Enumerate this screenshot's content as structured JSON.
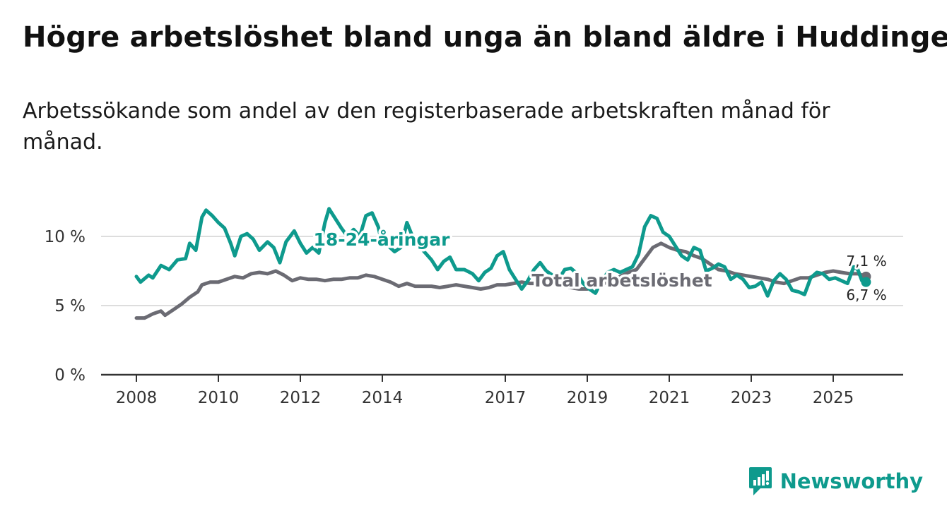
{
  "title": "Högre arbetslöshet bland unga än bland äldre i Huddinge",
  "subtitle": "Arbetssökande som andel av den registerbaserade arbetskraften månad för månad.",
  "brand": {
    "name": "Newsworthy",
    "color": "#0e9a8d"
  },
  "colors": {
    "youth": "#0e9a8d",
    "total": "#6b6b73",
    "axis": "#333333",
    "grid": "#dddddd"
  },
  "chart_data": {
    "type": "line",
    "title": "Högre arbetslöshet bland unga än bland äldre i Huddinge",
    "xlabel": "",
    "ylabel": "",
    "xlim": [
      2008,
      2025.85
    ],
    "ylim": [
      0,
      10
    ],
    "y_ticks": [
      {
        "value": 0,
        "label": "0 %"
      },
      {
        "value": 5,
        "label": "5 %"
      },
      {
        "value": 10,
        "label": "10 %"
      }
    ],
    "x_ticks": [
      {
        "value": 2008,
        "label": "2008"
      },
      {
        "value": 2010,
        "label": "2010"
      },
      {
        "value": 2012,
        "label": "2012"
      },
      {
        "value": 2014,
        "label": "2014"
      },
      {
        "value": 2017,
        "label": "2017"
      },
      {
        "value": 2019,
        "label": "2019"
      },
      {
        "value": 2021,
        "label": "2021"
      },
      {
        "value": 2023,
        "label": "2023"
      },
      {
        "value": 2025,
        "label": "2025"
      }
    ],
    "series": [
      {
        "name": "Total arbetslöshet",
        "label": "Total arbetslöshet",
        "color": "#6b6b73",
        "end_label": "7,1 %",
        "points": [
          [
            2008,
            4.1
          ],
          [
            2008.2,
            4.1
          ],
          [
            2008.4,
            4.4
          ],
          [
            2008.6,
            4.6
          ],
          [
            2008.7,
            4.3
          ],
          [
            2008.9,
            4.7
          ],
          [
            2009.1,
            5.1
          ],
          [
            2009.3,
            5.6
          ],
          [
            2009.5,
            6.0
          ],
          [
            2009.6,
            6.5
          ],
          [
            2009.8,
            6.7
          ],
          [
            2010.0,
            6.7
          ],
          [
            2010.2,
            6.9
          ],
          [
            2010.4,
            7.1
          ],
          [
            2010.6,
            7.0
          ],
          [
            2010.8,
            7.3
          ],
          [
            2011.0,
            7.4
          ],
          [
            2011.2,
            7.3
          ],
          [
            2011.4,
            7.5
          ],
          [
            2011.6,
            7.2
          ],
          [
            2011.8,
            6.8
          ],
          [
            2012.0,
            7.0
          ],
          [
            2012.2,
            6.9
          ],
          [
            2012.4,
            6.9
          ],
          [
            2012.6,
            6.8
          ],
          [
            2012.8,
            6.9
          ],
          [
            2013.0,
            6.9
          ],
          [
            2013.2,
            7.0
          ],
          [
            2013.4,
            7.0
          ],
          [
            2013.6,
            7.2
          ],
          [
            2013.8,
            7.1
          ],
          [
            2014.0,
            6.9
          ],
          [
            2014.2,
            6.7
          ],
          [
            2014.4,
            6.4
          ],
          [
            2014.6,
            6.6
          ],
          [
            2014.8,
            6.4
          ],
          [
            2015.0,
            6.4
          ],
          [
            2015.2,
            6.4
          ],
          [
            2015.4,
            6.3
          ],
          [
            2015.6,
            6.4
          ],
          [
            2015.8,
            6.5
          ],
          [
            2016.0,
            6.4
          ],
          [
            2016.2,
            6.3
          ],
          [
            2016.4,
            6.2
          ],
          [
            2016.6,
            6.3
          ],
          [
            2016.8,
            6.5
          ],
          [
            2017.0,
            6.5
          ],
          [
            2017.2,
            6.6
          ],
          [
            2017.4,
            6.7
          ],
          [
            2017.6,
            6.6
          ],
          [
            2017.8,
            6.6
          ],
          [
            2018.0,
            6.5
          ],
          [
            2018.2,
            6.5
          ],
          [
            2018.4,
            6.4
          ],
          [
            2018.6,
            6.3
          ],
          [
            2018.8,
            6.2
          ],
          [
            2019.0,
            6.2
          ],
          [
            2019.2,
            6.4
          ],
          [
            2019.4,
            6.6
          ],
          [
            2019.6,
            6.8
          ],
          [
            2019.8,
            7.1
          ],
          [
            2020.0,
            7.4
          ],
          [
            2020.2,
            7.6
          ],
          [
            2020.4,
            8.4
          ],
          [
            2020.6,
            9.2
          ],
          [
            2020.8,
            9.5
          ],
          [
            2021.0,
            9.2
          ],
          [
            2021.2,
            9.0
          ],
          [
            2021.4,
            8.9
          ],
          [
            2021.6,
            8.6
          ],
          [
            2021.8,
            8.4
          ],
          [
            2022.0,
            8.0
          ],
          [
            2022.2,
            7.6
          ],
          [
            2022.4,
            7.5
          ],
          [
            2022.6,
            7.3
          ],
          [
            2022.8,
            7.2
          ],
          [
            2023.0,
            7.1
          ],
          [
            2023.2,
            7.0
          ],
          [
            2023.4,
            6.9
          ],
          [
            2023.6,
            6.7
          ],
          [
            2023.8,
            6.6
          ],
          [
            2024.0,
            6.8
          ],
          [
            2024.2,
            7.0
          ],
          [
            2024.4,
            7.0
          ],
          [
            2024.6,
            7.2
          ],
          [
            2024.8,
            7.4
          ],
          [
            2025.0,
            7.5
          ],
          [
            2025.2,
            7.4
          ],
          [
            2025.4,
            7.3
          ],
          [
            2025.6,
            7.3
          ],
          [
            2025.8,
            7.1
          ]
        ]
      },
      {
        "name": "18-24-åringar",
        "label": "18-24-åringar",
        "color": "#0e9a8d",
        "end_label": "6,7 %",
        "points": [
          [
            2008,
            7.1
          ],
          [
            2008.1,
            6.7
          ],
          [
            2008.3,
            7.2
          ],
          [
            2008.4,
            7.0
          ],
          [
            2008.6,
            7.9
          ],
          [
            2008.8,
            7.6
          ],
          [
            2009.0,
            8.3
          ],
          [
            2009.2,
            8.4
          ],
          [
            2009.3,
            9.5
          ],
          [
            2009.45,
            9.0
          ],
          [
            2009.6,
            11.4
          ],
          [
            2009.7,
            11.9
          ],
          [
            2009.85,
            11.5
          ],
          [
            2010.0,
            11.0
          ],
          [
            2010.15,
            10.6
          ],
          [
            2010.3,
            9.5
          ],
          [
            2010.4,
            8.6
          ],
          [
            2010.55,
            10.0
          ],
          [
            2010.7,
            10.2
          ],
          [
            2010.85,
            9.8
          ],
          [
            2011.0,
            9.0
          ],
          [
            2011.2,
            9.6
          ],
          [
            2011.35,
            9.2
          ],
          [
            2011.5,
            8.1
          ],
          [
            2011.65,
            9.6
          ],
          [
            2011.85,
            10.4
          ],
          [
            2012.0,
            9.5
          ],
          [
            2012.15,
            8.8
          ],
          [
            2012.3,
            9.2
          ],
          [
            2012.45,
            8.8
          ],
          [
            2012.6,
            11.0
          ],
          [
            2012.7,
            12.0
          ],
          [
            2012.85,
            11.3
          ],
          [
            2013.0,
            10.6
          ],
          [
            2013.15,
            10.0
          ],
          [
            2013.3,
            10.5
          ],
          [
            2013.45,
            10.0
          ],
          [
            2013.6,
            11.5
          ],
          [
            2013.75,
            11.7
          ],
          [
            2013.9,
            10.7
          ],
          [
            2014.0,
            9.4
          ],
          [
            2014.15,
            9.3
          ],
          [
            2014.3,
            8.9
          ],
          [
            2014.45,
            9.2
          ],
          [
            2014.6,
            11.0
          ],
          [
            2014.75,
            9.9
          ],
          [
            2014.9,
            9.3
          ],
          [
            2015.05,
            8.8
          ],
          [
            2015.2,
            8.3
          ],
          [
            2015.35,
            7.6
          ],
          [
            2015.5,
            8.2
          ],
          [
            2015.65,
            8.5
          ],
          [
            2015.8,
            7.6
          ],
          [
            2016.0,
            7.6
          ],
          [
            2016.2,
            7.3
          ],
          [
            2016.35,
            6.8
          ],
          [
            2016.5,
            7.4
          ],
          [
            2016.65,
            7.7
          ],
          [
            2016.8,
            8.6
          ],
          [
            2016.95,
            8.9
          ],
          [
            2017.1,
            7.6
          ],
          [
            2017.25,
            6.9
          ],
          [
            2017.4,
            6.2
          ],
          [
            2017.55,
            6.8
          ],
          [
            2017.7,
            7.6
          ],
          [
            2017.85,
            8.1
          ],
          [
            2018.0,
            7.5
          ],
          [
            2018.15,
            7.2
          ],
          [
            2018.3,
            6.9
          ],
          [
            2018.45,
            7.6
          ],
          [
            2018.6,
            7.7
          ],
          [
            2018.75,
            7.3
          ],
          [
            2018.9,
            6.6
          ],
          [
            2019.05,
            6.2
          ],
          [
            2019.2,
            5.9
          ],
          [
            2019.35,
            6.8
          ],
          [
            2019.5,
            7.4
          ],
          [
            2019.65,
            7.6
          ],
          [
            2019.8,
            7.4
          ],
          [
            2019.95,
            7.6
          ],
          [
            2020.1,
            7.8
          ],
          [
            2020.25,
            8.7
          ],
          [
            2020.4,
            10.7
          ],
          [
            2020.55,
            11.5
          ],
          [
            2020.7,
            11.3
          ],
          [
            2020.85,
            10.3
          ],
          [
            2021.0,
            10.0
          ],
          [
            2021.15,
            9.3
          ],
          [
            2021.3,
            8.6
          ],
          [
            2021.45,
            8.3
          ],
          [
            2021.6,
            9.2
          ],
          [
            2021.75,
            9.0
          ],
          [
            2021.9,
            7.5
          ],
          [
            2022.05,
            7.7
          ],
          [
            2022.2,
            8.0
          ],
          [
            2022.35,
            7.8
          ],
          [
            2022.5,
            6.9
          ],
          [
            2022.65,
            7.2
          ],
          [
            2022.8,
            6.9
          ],
          [
            2022.95,
            6.3
          ],
          [
            2023.1,
            6.4
          ],
          [
            2023.25,
            6.7
          ],
          [
            2023.4,
            5.7
          ],
          [
            2023.55,
            6.8
          ],
          [
            2023.7,
            7.3
          ],
          [
            2023.85,
            6.9
          ],
          [
            2024.0,
            6.1
          ],
          [
            2024.15,
            6.0
          ],
          [
            2024.3,
            5.8
          ],
          [
            2024.45,
            7.0
          ],
          [
            2024.6,
            7.4
          ],
          [
            2024.75,
            7.3
          ],
          [
            2024.9,
            6.9
          ],
          [
            2025.05,
            7.0
          ],
          [
            2025.2,
            6.8
          ],
          [
            2025.35,
            6.6
          ],
          [
            2025.5,
            7.8
          ],
          [
            2025.6,
            7.6
          ],
          [
            2025.7,
            6.8
          ],
          [
            2025.8,
            6.7
          ]
        ]
      }
    ],
    "annotations": []
  }
}
